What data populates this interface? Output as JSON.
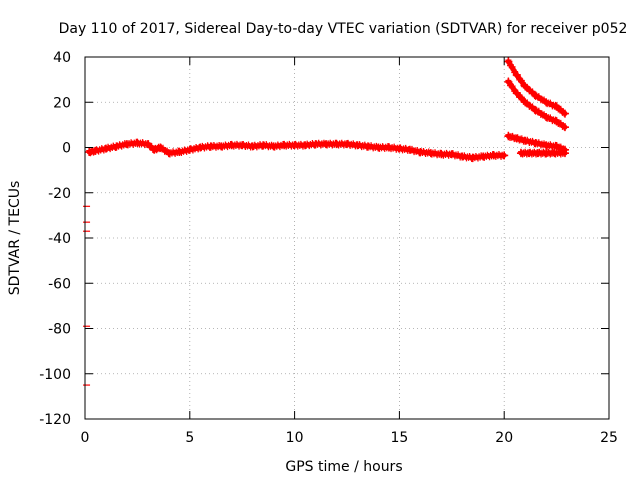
{
  "chart_data": {
    "type": "scatter",
    "title": "Day 110 of 2017, Sidereal Day-to-day VTEC variation (SDTVAR) for receiver p052",
    "xlabel": "GPS time / hours",
    "ylabel": "SDTVAR / TECUs",
    "xlim": [
      0,
      25
    ],
    "ylim": [
      -120,
      40
    ],
    "grid": true,
    "xticks": [
      0,
      5,
      10,
      15,
      20,
      25
    ],
    "yticks": [
      40,
      20,
      0,
      -20,
      -40,
      -60,
      -80,
      -100,
      -120
    ],
    "series_color": "#ff0000",
    "series": [
      {
        "name": "main-trace",
        "x": [
          0.2,
          0.5,
          1.0,
          1.5,
          2.0,
          2.5,
          3.0,
          3.3,
          3.6,
          4.0,
          4.5,
          5.0,
          5.5,
          6.0,
          6.5,
          7.0,
          7.5,
          8.0,
          8.5,
          9.0,
          9.5,
          10.0,
          10.5,
          11.0,
          11.5,
          12.0,
          12.5,
          13.0,
          13.5,
          14.0,
          14.5,
          15.0,
          15.5,
          16.0,
          16.5,
          17.0,
          17.5,
          18.0,
          18.5,
          19.0,
          19.5,
          20.0
        ],
        "y": [
          -2,
          -1.5,
          -0.5,
          0.5,
          1.5,
          2,
          1.5,
          -1,
          0,
          -2.5,
          -2,
          -1,
          0,
          0.5,
          0.5,
          1,
          1,
          0.5,
          1,
          0.5,
          1,
          1,
          1,
          1.5,
          1.5,
          1.5,
          1.5,
          1,
          0.5,
          0,
          0,
          -0.5,
          -1,
          -2,
          -2.5,
          -3,
          -3,
          -4,
          -4.5,
          -4,
          -3.5,
          -3.5
        ]
      },
      {
        "name": "arc-upper",
        "x": [
          20.2,
          20.6,
          21.0,
          21.5,
          22.0,
          22.5,
          22.9
        ],
        "y": [
          38,
          32,
          27,
          23,
          20,
          18,
          15
        ]
      },
      {
        "name": "arc-middle",
        "x": [
          20.2,
          20.6,
          21.0,
          21.5,
          22.0,
          22.5,
          22.9
        ],
        "y": [
          29,
          24,
          20,
          16.5,
          13.5,
          11.5,
          9
        ]
      },
      {
        "name": "arc-lower",
        "x": [
          20.2,
          20.6,
          21.0,
          21.5,
          22.0,
          22.5,
          22.9
        ],
        "y": [
          5,
          4,
          3,
          2,
          1,
          0.5,
          -1
        ]
      },
      {
        "name": "arc-bottom",
        "x": [
          20.8,
          21.2,
          21.6,
          22.0,
          22.4,
          22.9
        ],
        "y": [
          -2.5,
          -2.5,
          -2.5,
          -2.5,
          -2.5,
          -2.5
        ]
      },
      {
        "name": "outliers-left-edge",
        "x": [
          0.05,
          0.05,
          0.05,
          0.05,
          0.05
        ],
        "y": [
          -26,
          -33,
          -37,
          -79,
          -105
        ]
      }
    ]
  }
}
